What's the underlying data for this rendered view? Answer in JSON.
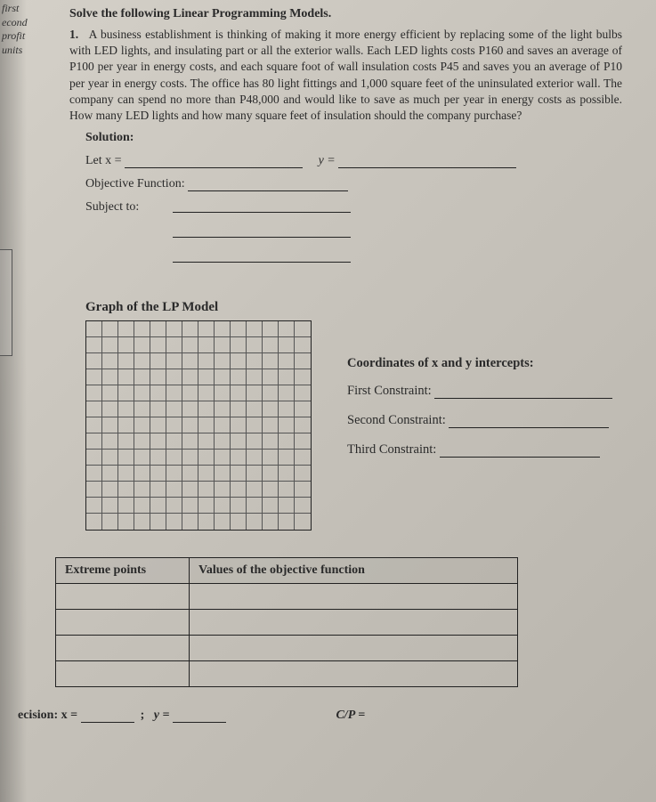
{
  "margin": {
    "w1": "first",
    "w2": "econd",
    "w3": "profit",
    "w4": "units"
  },
  "header": "Solve the following Linear Programming Models.",
  "problem": {
    "num": "1.",
    "text": "A business establishment is thinking of making it more energy efficient by replacing some of the light bulbs with LED lights, and insulating part or all the exterior walls. Each LED lights costs P160 and saves an average of P100 per year in energy costs, and each square foot of wall insulation costs P45 and saves you an average of P10 per year in energy costs. The office has 80 light fittings and 1,000 square feet of the uninsulated exterior wall. The company can spend no more than P48,000 and would like to save as much per year in energy costs as possible. How many LED lights and how many square feet of insulation should the company purchase?"
  },
  "solution": {
    "label": "Solution:",
    "letx": "Let x =",
    "y_eq": "y =",
    "obj": "Objective Function:",
    "subj": "Subject to:"
  },
  "graph": {
    "title": "Graph of the LP Model",
    "rows": 13,
    "cols": 14
  },
  "intercepts": {
    "title": "Coordinates of x and y intercepts:",
    "c1": "First Constraint:",
    "c2": "Second Constraint:",
    "c3": "Third Constraint:"
  },
  "table": {
    "h1": "Extreme points",
    "h2": "Values of the objective function",
    "blank_rows": 4
  },
  "decision": {
    "label": "ecision: x =",
    "semi": ";",
    "y": "y =",
    "cp": "C/P ="
  }
}
